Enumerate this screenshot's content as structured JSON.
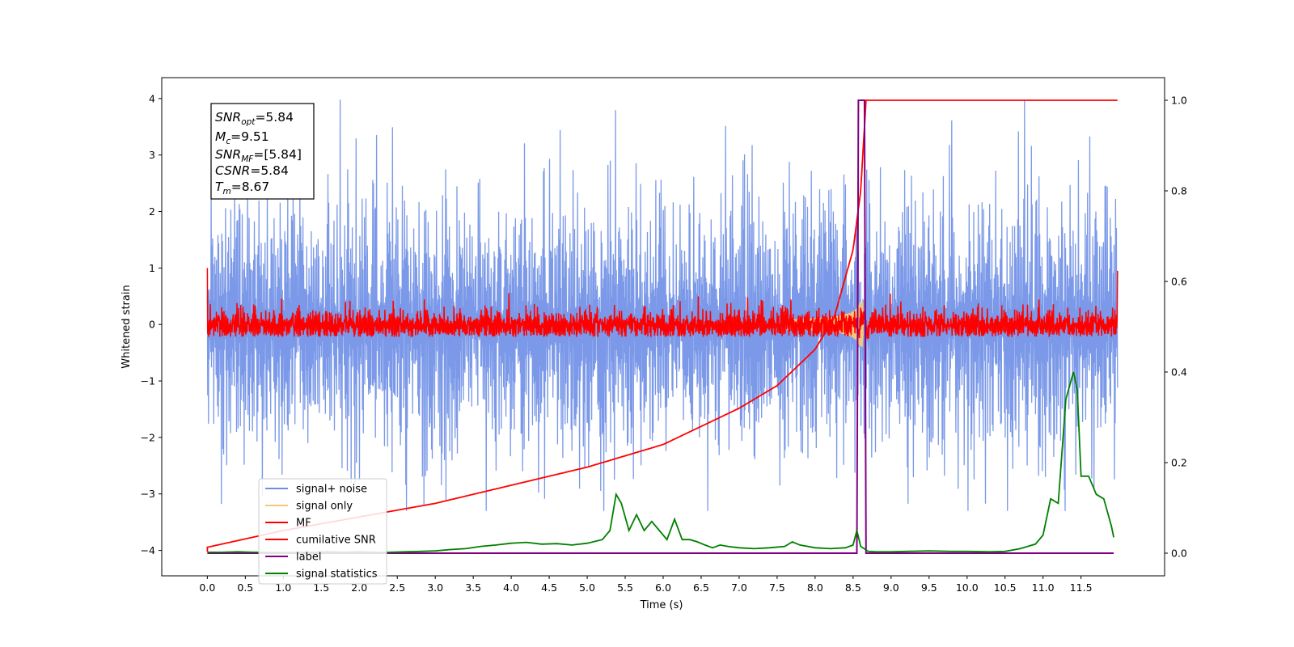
{
  "chart_data": {
    "type": "line",
    "xlabel": "Time (s)",
    "ylabel": "Whitened strain",
    "xlim": [
      -0.6,
      12.6
    ],
    "ylim": [
      -4.45,
      4.37
    ],
    "y2lim": [
      -0.05,
      1.05
    ],
    "xticks": [
      "0.0",
      "0.5",
      "1.0",
      "1.5",
      "2.0",
      "2.5",
      "3.0",
      "3.5",
      "4.0",
      "4.5",
      "5.0",
      "5.5",
      "6.0",
      "6.5",
      "7.0",
      "7.5",
      "8.0",
      "8.5",
      "9.0",
      "9.5",
      "10.0",
      "10.5",
      "11.0",
      "11.5"
    ],
    "yticks": [
      "4",
      "3",
      "2",
      "1",
      "0",
      "−1",
      "−2",
      "−3",
      "−4"
    ],
    "y2ticks": [
      "1.0",
      "0.8",
      "0.6",
      "0.4",
      "0.2",
      "0.0"
    ],
    "grid": false,
    "legend_position": "lower-left",
    "annotation": {
      "snr_opt": {
        "base": "SNR",
        "sub": "opt",
        "value": "=5.84"
      },
      "mc": {
        "base": "M",
        "sub": "c",
        "value": "=9.51"
      },
      "snr_mf": {
        "base": "SNR",
        "sub": "MF",
        "value": "=[5.84]"
      },
      "csnr": {
        "base": "CSNR",
        "value": "=5.84"
      },
      "tm": {
        "base": "T",
        "sub": "m",
        "value": "=8.67"
      }
    },
    "series": [
      {
        "name": "signal+ noise",
        "color": "#6d8ee6",
        "axis": "left",
        "description_range": [
          -3.3,
          3.98
        ],
        "x_range": [
          0.0,
          11.98
        ],
        "sample_count": 2400
      },
      {
        "name": "signal only",
        "color": "#f5c87a",
        "axis": "left",
        "chirp_peak_time": 8.63,
        "chirp_peak_amplitude": 0.4
      },
      {
        "name": "MF",
        "color": "#ff0000",
        "axis": "left",
        "x_range": [
          0.0,
          11.98
        ],
        "band": [
          -0.25,
          0.62
        ]
      },
      {
        "name": "cumilative SNR",
        "color": "#ff0000",
        "axis": "right",
        "x": [
          0.0,
          1.0,
          2.0,
          3.0,
          4.0,
          5.0,
          5.5,
          6.0,
          6.5,
          7.0,
          7.5,
          8.0,
          8.25,
          8.5,
          8.6,
          8.67,
          9.0,
          10.0,
          11.0,
          11.98
        ],
        "values": [
          0.013,
          0.05,
          0.08,
          0.11,
          0.15,
          0.19,
          0.215,
          0.24,
          0.28,
          0.32,
          0.37,
          0.45,
          0.52,
          0.67,
          0.8,
          1.0,
          1.0,
          1.0,
          1.0,
          1.0
        ]
      },
      {
        "name": "label",
        "color": "#800080",
        "axis": "right",
        "x": [
          0.0,
          8.55,
          8.57,
          8.65,
          8.67,
          11.93
        ],
        "values": [
          0.0,
          0.0,
          1.0,
          1.0,
          0.0,
          0.0
        ]
      },
      {
        "name": "signal statistics",
        "color": "#008000",
        "axis": "right",
        "x": [
          0.0,
          0.2,
          0.4,
          0.6,
          0.8,
          1.0,
          1.2,
          1.4,
          1.6,
          1.8,
          2.0,
          2.2,
          2.4,
          2.6,
          2.8,
          3.0,
          3.2,
          3.4,
          3.6,
          3.8,
          4.0,
          4.2,
          4.4,
          4.6,
          4.8,
          5.0,
          5.2,
          5.3,
          5.38,
          5.45,
          5.55,
          5.65,
          5.75,
          5.85,
          5.95,
          6.05,
          6.15,
          6.25,
          6.35,
          6.45,
          6.55,
          6.65,
          6.75,
          6.85,
          7.0,
          7.2,
          7.4,
          7.6,
          7.7,
          7.8,
          8.0,
          8.2,
          8.4,
          8.5,
          8.55,
          8.6,
          8.7,
          8.8,
          9.0,
          9.2,
          9.5,
          9.8,
          10.0,
          10.3,
          10.5,
          10.7,
          10.9,
          11.0,
          11.1,
          11.2,
          11.3,
          11.4,
          11.45,
          11.5,
          11.6,
          11.7,
          11.8,
          11.9,
          11.93
        ],
        "values": [
          0.002,
          0.002,
          0.003,
          0.002,
          0.002,
          0.001,
          0.002,
          0.002,
          0.003,
          0.002,
          0.003,
          0.002,
          0.002,
          0.003,
          0.004,
          0.005,
          0.008,
          0.01,
          0.015,
          0.018,
          0.022,
          0.024,
          0.02,
          0.021,
          0.018,
          0.022,
          0.03,
          0.05,
          0.13,
          0.11,
          0.05,
          0.085,
          0.05,
          0.07,
          0.05,
          0.03,
          0.075,
          0.03,
          0.03,
          0.025,
          0.018,
          0.012,
          0.018,
          0.015,
          0.012,
          0.01,
          0.012,
          0.015,
          0.025,
          0.018,
          0.012,
          0.01,
          0.012,
          0.018,
          0.05,
          0.015,
          0.004,
          0.003,
          0.003,
          0.004,
          0.005,
          0.004,
          0.004,
          0.003,
          0.004,
          0.01,
          0.02,
          0.04,
          0.12,
          0.11,
          0.34,
          0.4,
          0.36,
          0.17,
          0.17,
          0.13,
          0.12,
          0.06,
          0.035
        ]
      }
    ]
  }
}
